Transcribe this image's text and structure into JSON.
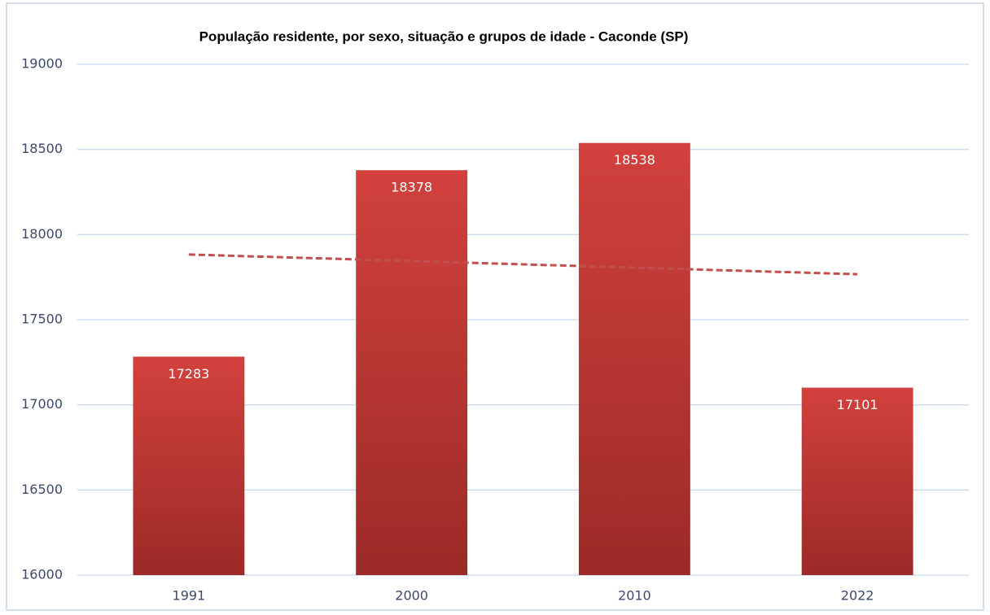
{
  "chart_data": {
    "type": "bar",
    "title": "População residente, por sexo, situação e grupos de idade - Caconde (SP)",
    "categories": [
      "1991",
      "2000",
      "2010",
      "2022"
    ],
    "values": [
      17283,
      18378,
      18538,
      17101
    ],
    "color": "#c73b37",
    "ylim": [
      16000,
      19000
    ],
    "yticks": [
      16000,
      16500,
      17000,
      17500,
      18000,
      18500,
      19000
    ],
    "grid": true,
    "trendline": "linear",
    "trendline_color": "#c0504d"
  }
}
